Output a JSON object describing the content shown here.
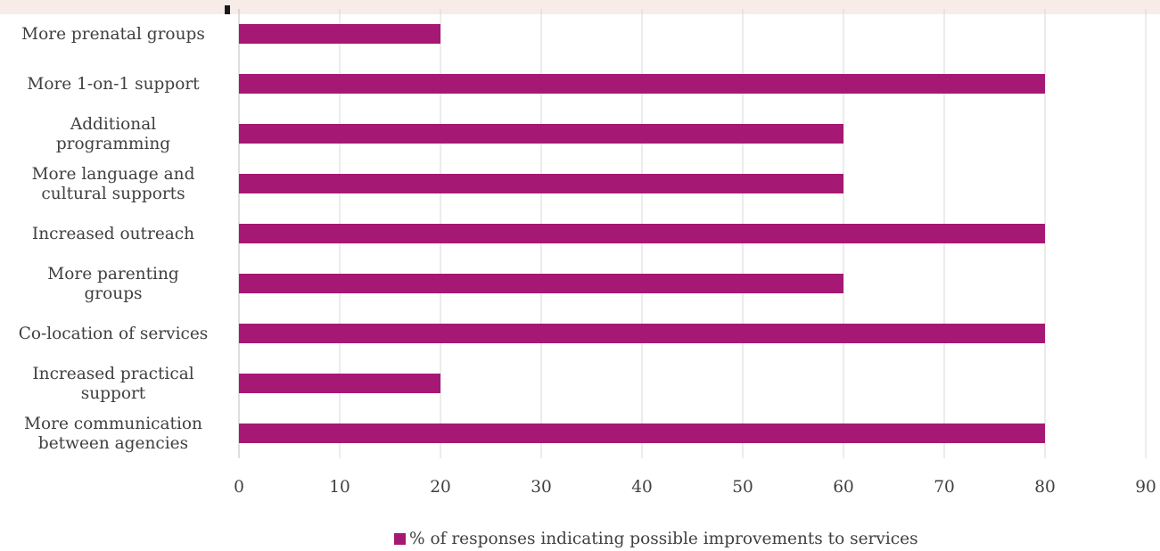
{
  "chart_data": {
    "type": "bar",
    "orientation": "horizontal",
    "title": "",
    "xlabel": "",
    "ylabel": "",
    "categories": [
      [
        "More prenatal groups"
      ],
      [
        "More 1-on-1 support"
      ],
      [
        "Additional",
        "programming"
      ],
      [
        "More language and",
        "cultural supports"
      ],
      [
        "Increased outreach"
      ],
      [
        "More parenting",
        "groups"
      ],
      [
        "Co-location of services"
      ],
      [
        "Increased practical",
        "support"
      ],
      [
        "More communication",
        "between agencies"
      ]
    ],
    "series": [
      {
        "name": "% of responses indicating possible improvements to services",
        "color": "#a51874",
        "values": [
          20,
          80,
          60,
          60,
          80,
          60,
          80,
          20,
          80
        ]
      }
    ],
    "xlim": [
      0,
      90
    ],
    "xticks": [
      "0",
      "10",
      "20",
      "30",
      "40",
      "50",
      "60",
      "70",
      "80",
      "90"
    ],
    "grid": "vertical",
    "legend_position": "bottom"
  },
  "legend": {
    "label": "% of responses indicating possible improvements to services",
    "color": "#a51874"
  }
}
